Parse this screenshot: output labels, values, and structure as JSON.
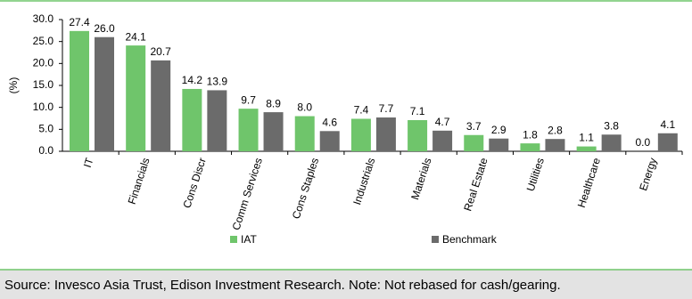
{
  "chart_data": {
    "type": "bar",
    "y_label": "(%)",
    "categories": [
      "IT",
      "Financials",
      "Cons Discr",
      "Comm Services",
      "Cons Staples",
      "Industrials",
      "Materials",
      "Real Estate",
      "Utilities",
      "Healthcare",
      "Energy"
    ],
    "series": [
      {
        "name": "IAT",
        "color": "#6fc56b",
        "values": [
          27.4,
          24.1,
          14.2,
          9.7,
          8,
          7.4,
          7.1,
          3.7,
          1.8,
          1.1,
          0
        ],
        "value_labels": [
          "27.4",
          "24.1",
          "14.2",
          "9.7",
          "8.0",
          "7.4",
          "7.1",
          "3.7",
          "1.8",
          "1.1",
          "0.0"
        ]
      },
      {
        "name": "Benchmark",
        "color": "#6b6b6b",
        "values": [
          26,
          20.7,
          13.9,
          8.9,
          4.6,
          7.7,
          4.7,
          2.9,
          2.8,
          3.8,
          4.1
        ],
        "value_labels": [
          "26.0",
          "20.7",
          "13.9",
          "8.9",
          "4.6",
          "7.7",
          "4.7",
          "2.9",
          "2.8",
          "3.8",
          "4.1"
        ]
      }
    ],
    "ylim": [
      0,
      30
    ],
    "yticks": [
      {
        "value": 0,
        "label": "0.0"
      },
      {
        "value": 5,
        "label": "5.0"
      },
      {
        "value": 10,
        "label": "10.0"
      },
      {
        "value": 15,
        "label": "15.0"
      },
      {
        "value": 20,
        "label": "20.0"
      },
      {
        "value": 25,
        "label": "25.0"
      },
      {
        "value": 30,
        "label": "30.0"
      }
    ],
    "grid": false,
    "legend": "bottom",
    "source": "Source: Invesco Asia Trust, Edison Investment Research. Note: Not rebased for cash/gearing."
  }
}
